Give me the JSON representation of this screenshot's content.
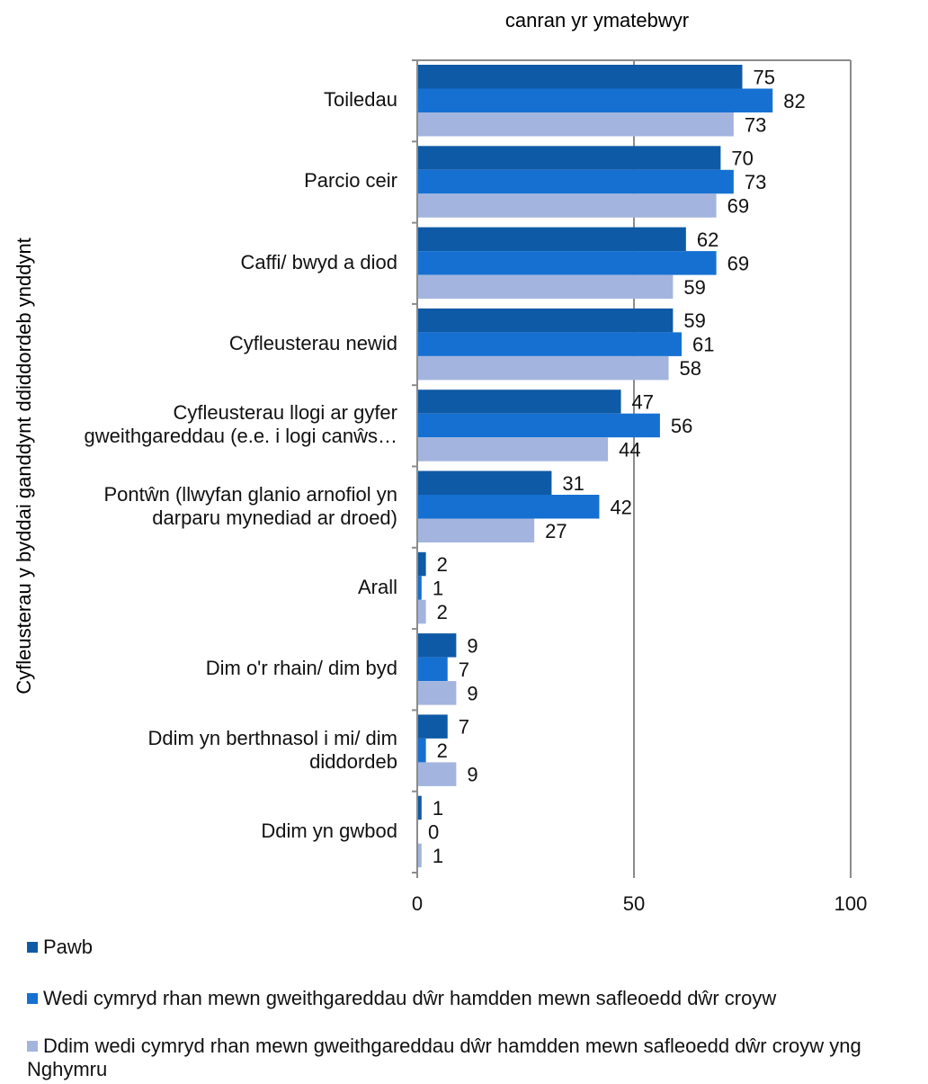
{
  "chart_data": {
    "type": "bar",
    "orientation": "horizontal",
    "title": "canran yr ymatebwyr",
    "ylabel": "Cyfleusterau y byddai ganddynt ddiddordeb ynddynt",
    "xlim": [
      0,
      100
    ],
    "xticks": [
      0,
      50,
      100
    ],
    "grid": true,
    "legend_position": "bottom",
    "categories": [
      [
        "Toiledau"
      ],
      [
        "Parcio ceir"
      ],
      [
        "Caffi/ bwyd a diod"
      ],
      [
        "Cyfleusterau newid"
      ],
      [
        "Cyfleusterau llogi ar gyfer",
        "gweithgareddau (e.e. i logi canŵs…"
      ],
      [
        "Pontŵn (llwyfan glanio arnofiol yn",
        "darparu mynediad ar droed)"
      ],
      [
        "Arall"
      ],
      [
        "Dim o'r rhain/ dim byd"
      ],
      [
        "Ddim yn berthnasol i mi/ dim",
        "diddordeb"
      ],
      [
        "Ddim yn gwbod"
      ]
    ],
    "series": [
      {
        "name": "Pawb",
        "color": "#0f5aa6",
        "values": [
          75,
          70,
          62,
          59,
          47,
          31,
          2,
          9,
          7,
          1
        ]
      },
      {
        "name": "Wedi cymryd rhan mewn gweithgareddau dŵr hamdden mewn safleoedd dŵr croyw",
        "color": "#1670d2",
        "values": [
          82,
          73,
          69,
          61,
          56,
          42,
          1,
          7,
          2,
          0
        ]
      },
      {
        "name": "Ddim wedi cymryd rhan mewn gweithgareddau dŵr hamdden mewn safleoedd dŵr croyw yng Nghymru",
        "color": "#a3b5de",
        "values": [
          73,
          69,
          59,
          58,
          44,
          27,
          2,
          9,
          9,
          1
        ]
      }
    ]
  }
}
